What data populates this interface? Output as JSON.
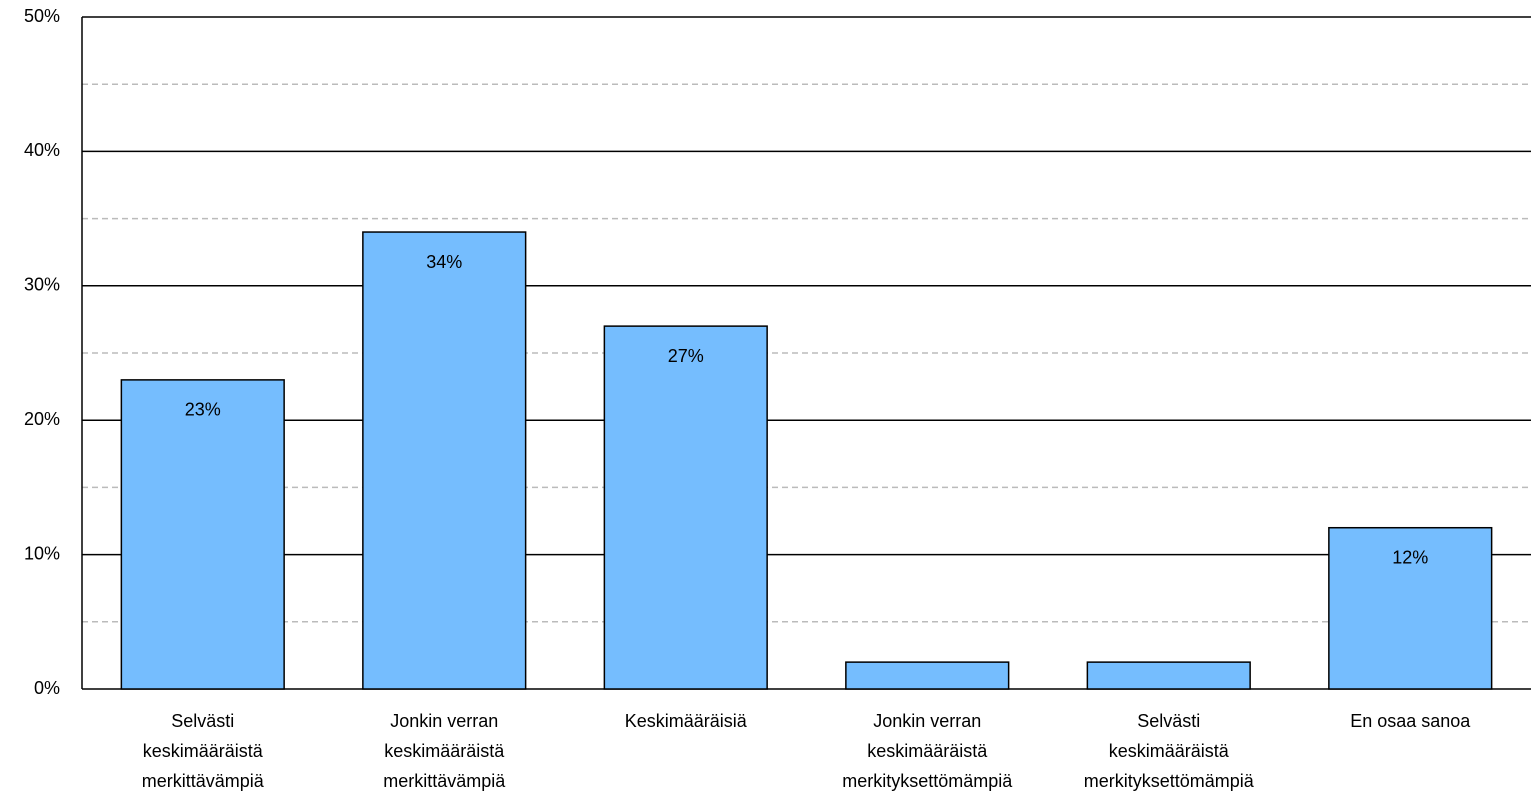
{
  "chart_data": {
    "type": "bar",
    "categories": [
      "Selvästi\nkeskimääräistä\nmerkittävämpiä",
      "Jonkin verran\nkeskimääräistä\nmerkittävämpiä",
      "Keskimääräisiä",
      "Jonkin verran\nkeskimääräistä\nmerkityksettömämpiä",
      "Selvästi\nkeskimääräistä\nmerkityksettömämpiä",
      "En osaa sanoa"
    ],
    "values": [
      23,
      34,
      27,
      2,
      2,
      12
    ],
    "value_labels": [
      "23%",
      "34%",
      "27%",
      null,
      null,
      "12%"
    ],
    "color": "#75bdfe",
    "ylim": [
      0,
      50
    ],
    "yticks": [
      {
        "value": 0,
        "label": "0%"
      },
      {
        "value": 10,
        "label": "10%"
      },
      {
        "value": 20,
        "label": "20%"
      },
      {
        "value": 30,
        "label": "30%"
      },
      {
        "value": 40,
        "label": "40%"
      },
      {
        "value": 50,
        "label": "50%"
      }
    ],
    "yminor": [
      5,
      15,
      25,
      35,
      45
    ],
    "grid": true
  }
}
